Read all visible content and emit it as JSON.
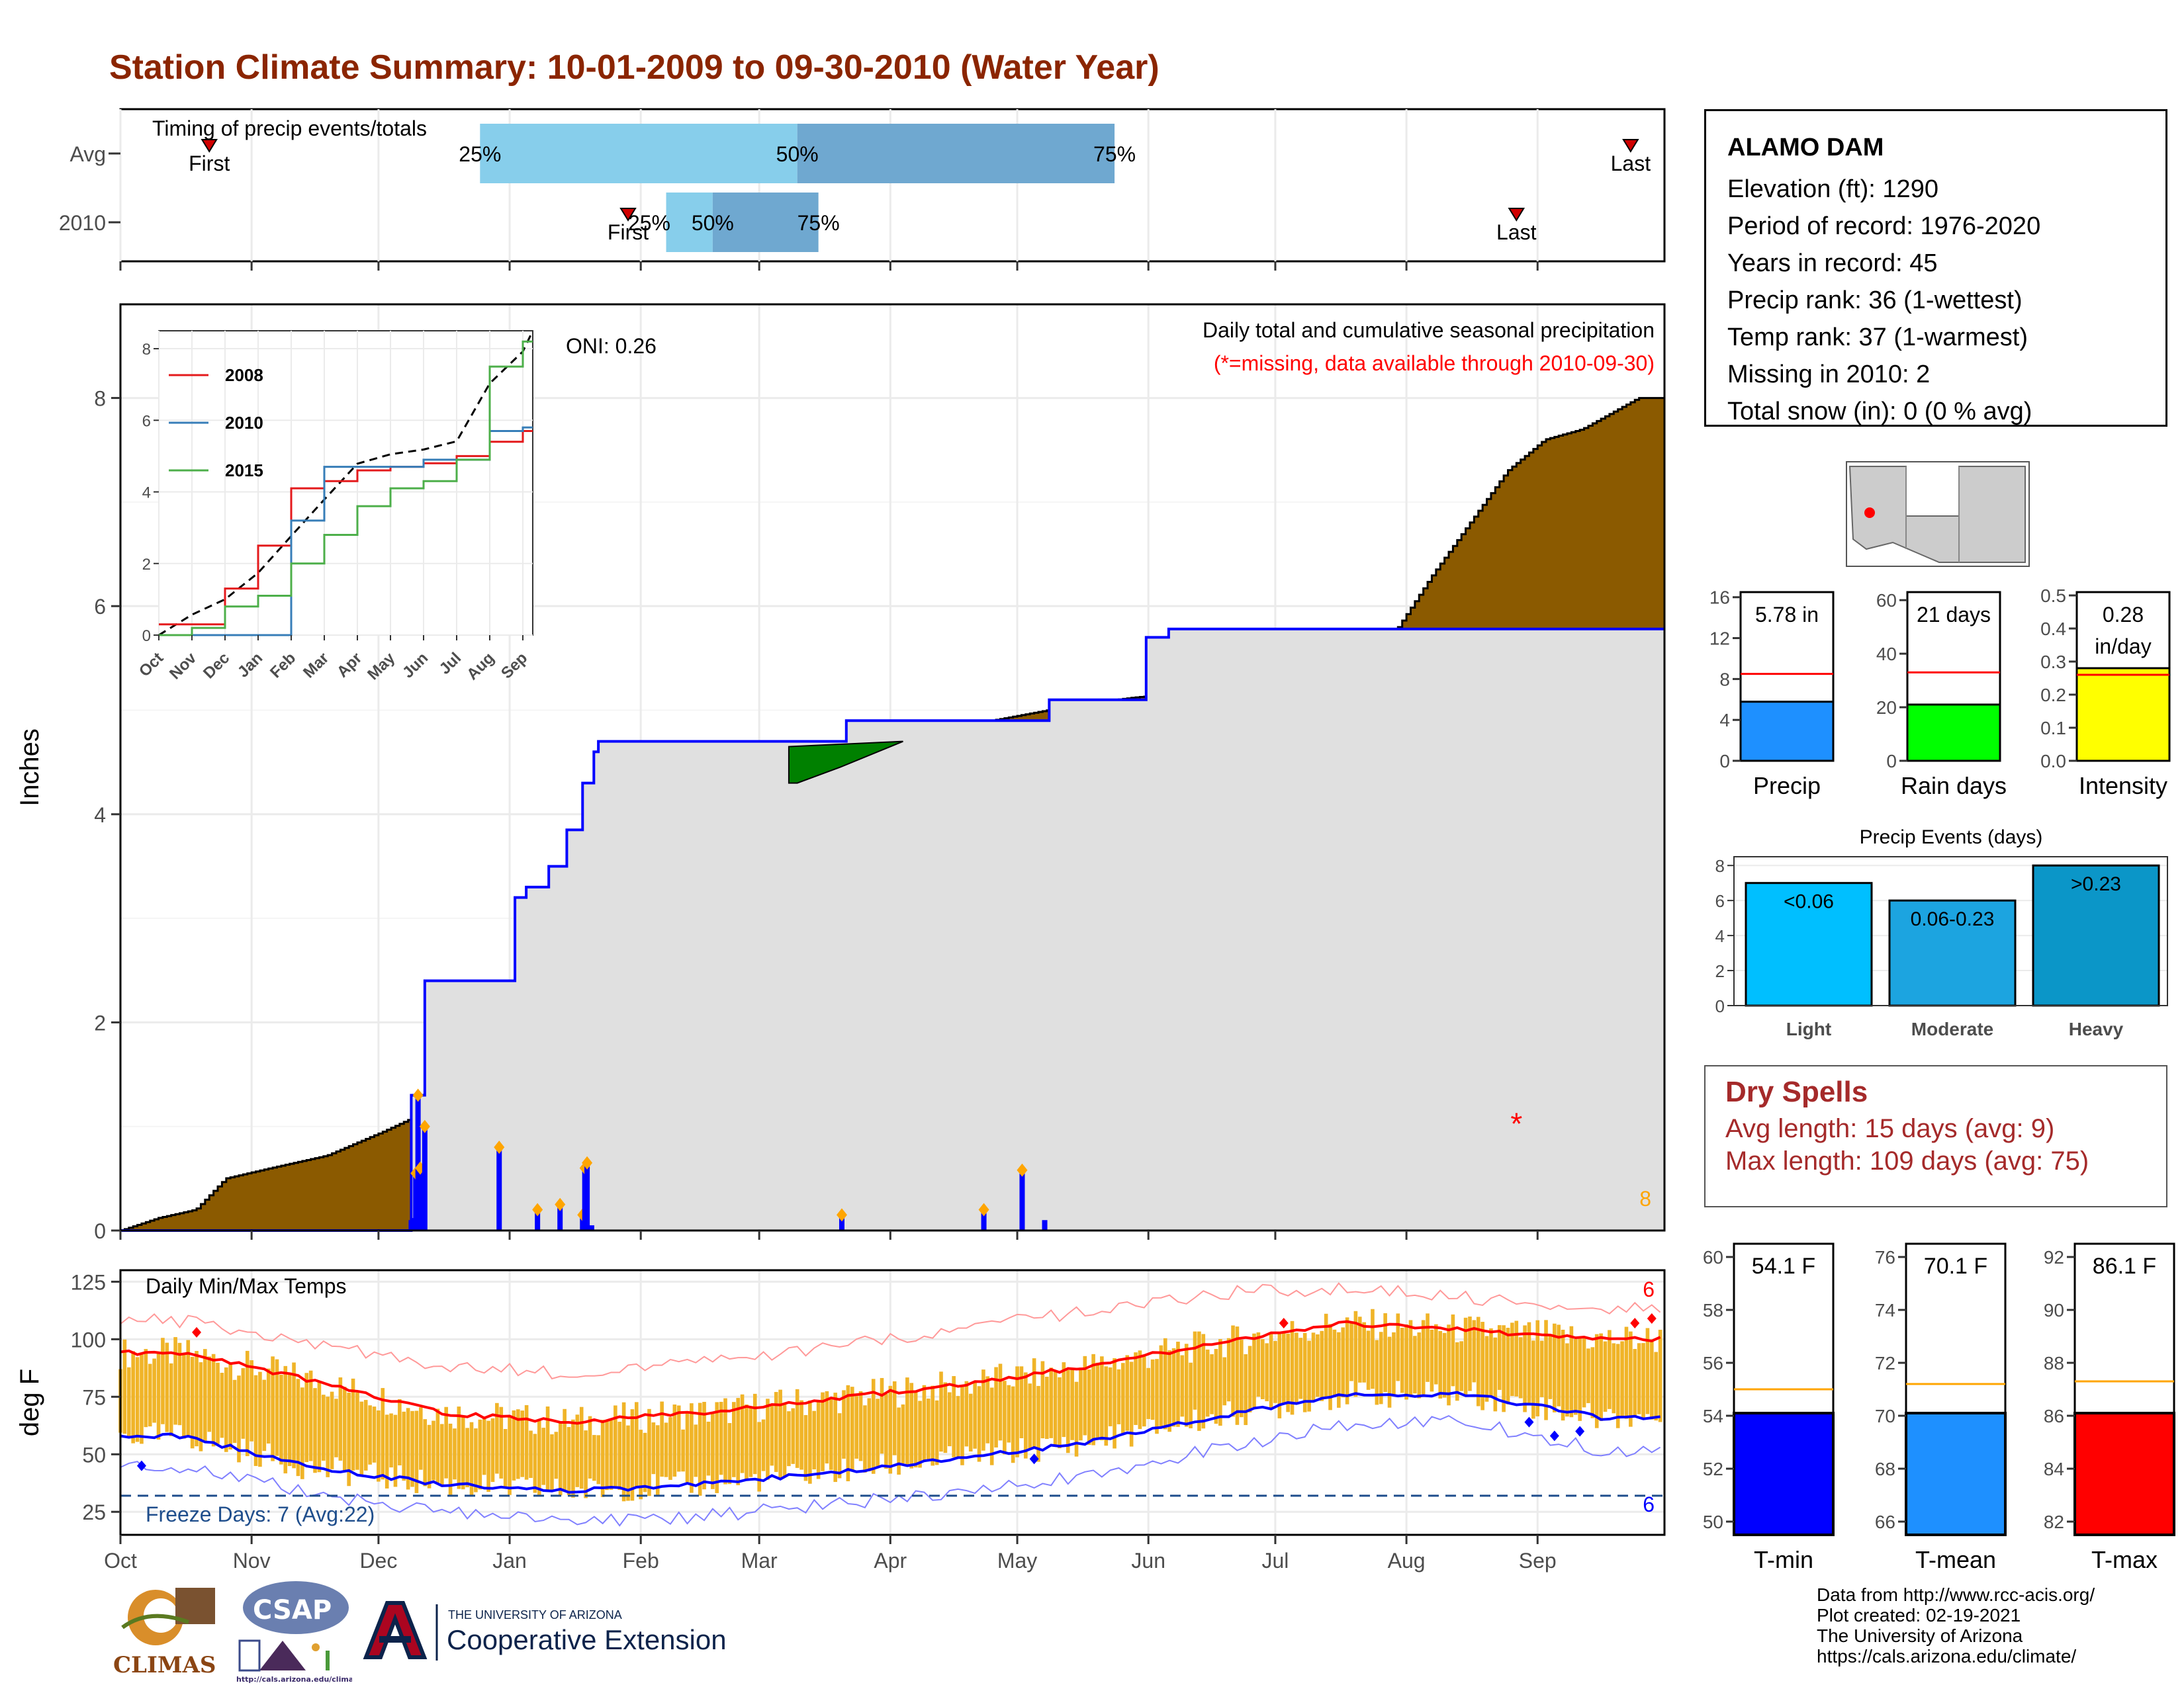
{
  "title": "Station Climate Summary: 10-01-2009 to 09-30-2010 (Water Year)",
  "colors": {
    "title": "#8b2500",
    "accum": "#8b5a00",
    "fill_gray": "#e0e0e0",
    "blue": "#0000ff",
    "green": "#008000",
    "orange": "#ffa500",
    "red": "#ff0000",
    "bar_yellow": "#f0b428"
  },
  "station": {
    "name": "ALAMO DAM",
    "lines": [
      "Elevation (ft): 1290",
      "Period of record: 1976-2020",
      "Years in record: 45",
      "Precip rank: 36 (1-wettest)",
      "Temp rank: 37 (1-warmest)",
      "Missing in 2010: 2",
      "Total snow (in): 0 (0 % avg)"
    ]
  },
  "timing": {
    "title": "Timing of precip events/totals",
    "rows": [
      {
        "label": "Avg",
        "first": "First",
        "last": "Last",
        "p25": "25%",
        "p50": "50%",
        "p75": "75%"
      },
      {
        "label": "2010",
        "first": "First",
        "last": "Last",
        "p25": "25%",
        "p50": "50%",
        "p75": "75%"
      }
    ]
  },
  "precip_panel": {
    "ylabel": "Inches",
    "annotation_title": "Daily total and cumulative seasonal precipitation",
    "annotation_missing": "(*=missing, data available through 2010-09-30)",
    "oni": "ONI: 0.26",
    "count_label": "8",
    "y_ticks": [
      "0",
      "2",
      "4",
      "6",
      "8"
    ]
  },
  "inset": {
    "y_ticks": [
      "0",
      "2",
      "4",
      "6",
      "8"
    ],
    "x_ticks": [
      "Oct",
      "Nov",
      "Dec",
      "Jan",
      "Feb",
      "Mar",
      "Apr",
      "May",
      "Jun",
      "Jul",
      "Aug",
      "Sep"
    ],
    "legend": [
      "2008",
      "2010",
      "2015"
    ]
  },
  "temp_panel": {
    "ylabel": "deg F",
    "title": "Daily Min/Max Temps",
    "freeze": "Freeze Days: 7 (Avg:22)",
    "count_max": "6",
    "count_min": "6",
    "y_ticks": [
      "25",
      "50",
      "75",
      "100",
      "125"
    ]
  },
  "month_ticks": [
    "Oct",
    "Nov",
    "Dec",
    "Jan",
    "Feb",
    "Mar",
    "Apr",
    "May",
    "Jun",
    "Jul",
    "Aug",
    "Sep"
  ],
  "mini_bars": {
    "precip": {
      "label": "Precip",
      "value_text": "5.78 in",
      "y_ticks": [
        "0",
        "4",
        "8",
        "12",
        "16"
      ]
    },
    "rain_days": {
      "label": "Rain days",
      "value_text": "21 days",
      "y_ticks": [
        "0",
        "20",
        "40",
        "60"
      ]
    },
    "intensity": {
      "label": "Intensity",
      "value_text_1": "0.28",
      "value_text_2": "in/day",
      "y_ticks": [
        "0.0",
        "0.1",
        "0.2",
        "0.3",
        "0.4",
        "0.5"
      ]
    }
  },
  "events": {
    "title": "Precip Events (days)",
    "y_ticks": [
      "0",
      "2",
      "4",
      "6",
      "8"
    ],
    "bars": [
      {
        "category": "Light",
        "label": "<0.06",
        "value": 7
      },
      {
        "category": "Moderate",
        "label": "0.06-0.23",
        "value": 6
      },
      {
        "category": "Heavy",
        "label": ">0.23",
        "value": 8
      }
    ]
  },
  "dry_spells": {
    "title": "Dry Spells",
    "avg": "Avg length: 15 days (avg: 9)",
    "max": "Max length: 109 days (avg: 75)"
  },
  "temp_bars": {
    "tmin": {
      "label": "T-min",
      "value_text": "54.1 F",
      "value": 54.1,
      "avg": 55.0,
      "y_ticks": [
        "50",
        "52",
        "54",
        "56",
        "58",
        "60"
      ]
    },
    "tmean": {
      "label": "T-mean",
      "value_text": "70.1 F",
      "value": 70.1,
      "avg": 71.2,
      "y_ticks": [
        "66",
        "68",
        "70",
        "72",
        "74",
        "76"
      ]
    },
    "tmax": {
      "label": "T-max",
      "value_text": "86.1 F",
      "value": 86.1,
      "avg": 87.3,
      "y_ticks": [
        "82",
        "84",
        "86",
        "88",
        "90",
        "92"
      ]
    }
  },
  "credits": [
    "Data from http://www.rcc-acis.org/",
    "Plot created: 02-19-2021",
    "The University of Arizona",
    "https://cals.arizona.edu/climate/"
  ],
  "logos": {
    "climas": "CLIMAS",
    "csap": "CSAP",
    "csap_url": "http://cals.arizona.edu/climate",
    "ua_top": "THE UNIVERSITY OF ARIZONA",
    "ua_bottom": "Cooperative Extension"
  },
  "chart_data": [
    {
      "type": "area",
      "name": "cumulative precipitation",
      "ylabel": "Inches",
      "x_range": [
        "2009-10-01",
        "2010-09-30"
      ],
      "ylim": [
        0,
        8.8
      ],
      "cumulative_avg": [
        [
          0,
          0
        ],
        [
          10,
          0.12
        ],
        [
          20,
          0.2
        ],
        [
          28,
          0.5
        ],
        [
          40,
          0.6
        ],
        [
          55,
          0.72
        ],
        [
          70,
          0.95
        ],
        [
          85,
          1.2
        ],
        [
          100,
          1.55
        ],
        [
          115,
          1.85
        ],
        [
          130,
          2.25
        ],
        [
          140,
          2.65
        ],
        [
          150,
          2.85
        ],
        [
          160,
          3.05
        ],
        [
          170,
          3.3
        ],
        [
          180,
          3.7
        ],
        [
          188,
          4.0
        ],
        [
          195,
          4.3
        ],
        [
          205,
          4.55
        ],
        [
          215,
          4.75
        ],
        [
          225,
          4.85
        ],
        [
          240,
          4.95
        ],
        [
          255,
          5.05
        ],
        [
          270,
          5.12
        ],
        [
          285,
          5.17
        ],
        [
          300,
          5.2
        ],
        [
          310,
          5.2
        ],
        [
          320,
          5.25
        ],
        [
          330,
          5.45
        ],
        [
          340,
          5.75
        ],
        [
          350,
          6.3
        ],
        [
          360,
          6.8
        ],
        [
          370,
          7.3
        ],
        [
          380,
          7.6
        ],
        [
          390,
          7.7
        ],
        [
          405,
          8.0
        ],
        [
          412,
          8.0
        ]
      ],
      "cumulative_2010": [
        [
          0,
          0
        ],
        [
          117,
          0
        ],
        [
          128,
          0
        ],
        [
          129,
          1.3
        ],
        [
          135,
          2.4
        ],
        [
          168,
          2.4
        ],
        [
          175,
          3.2
        ],
        [
          180,
          3.3
        ],
        [
          190,
          3.5
        ],
        [
          198,
          3.85
        ],
        [
          205,
          4.3
        ],
        [
          210,
          4.6
        ],
        [
          212,
          4.7
        ],
        [
          240,
          4.7
        ],
        [
          320,
          4.7
        ],
        [
          322,
          4.9
        ],
        [
          410,
          4.9
        ],
        [
          412,
          5.1
        ],
        [
          440,
          5.1
        ],
        [
          455,
          5.7
        ],
        [
          465,
          5.78
        ],
        [
          500,
          5.78
        ]
      ],
      "daily_2010": [
        [
          129,
          0.1
        ],
        [
          130,
          0.12
        ],
        [
          131,
          0.55
        ],
        [
          132,
          1.3
        ],
        [
          133,
          0.6
        ],
        [
          135,
          1.0
        ],
        [
          168,
          0.8
        ],
        [
          185,
          0.2
        ],
        [
          195,
          0.25
        ],
        [
          205,
          0.15
        ],
        [
          206,
          0.6
        ],
        [
          207,
          0.65
        ],
        [
          209,
          0.05
        ],
        [
          320,
          0.15
        ],
        [
          383,
          0.2
        ],
        [
          400,
          0.58
        ],
        [
          410,
          0.1
        ]
      ]
    },
    {
      "type": "line",
      "name": "inset cumulative precip",
      "x": [
        "Oct",
        "Nov",
        "Dec",
        "Jan",
        "Feb",
        "Mar",
        "Apr",
        "May",
        "Jun",
        "Jul",
        "Aug",
        "Sep"
      ],
      "series": [
        {
          "name": "2008",
          "values": [
            0.3,
            0.3,
            1.3,
            2.5,
            4.1,
            4.3,
            4.6,
            4.7,
            4.8,
            5.0,
            5.4,
            5.7
          ]
        },
        {
          "name": "2010",
          "values": [
            0.0,
            0.0,
            0.0,
            0.0,
            3.2,
            4.7,
            4.7,
            4.7,
            4.9,
            4.9,
            5.7,
            5.8
          ]
        },
        {
          "name": "2015",
          "values": [
            0.0,
            0.2,
            0.8,
            1.1,
            2.0,
            2.8,
            3.6,
            4.1,
            4.3,
            4.9,
            7.5,
            8.2
          ]
        }
      ],
      "ylim": [
        0,
        8.5
      ]
    },
    {
      "type": "line",
      "name": "Daily Min/Max Temps",
      "ylabel": "deg F",
      "ylim": [
        15,
        130
      ],
      "months": [
        "Oct",
        "Nov",
        "Dec",
        "Jan",
        "Feb",
        "Mar",
        "Apr",
        "May",
        "Jun",
        "Jul",
        "Aug",
        "Sep"
      ],
      "avg_max": [
        94,
        82,
        68,
        64,
        68,
        74,
        80,
        88,
        98,
        107,
        104,
        100
      ],
      "avg_min": [
        58,
        44,
        37,
        34,
        37,
        42,
        48,
        55,
        66,
        76,
        76,
        66
      ],
      "record_max": [
        108,
        98,
        88,
        85,
        90,
        96,
        104,
        112,
        120,
        122,
        118,
        114
      ],
      "record_min": [
        45,
        33,
        25,
        21,
        23,
        28,
        34,
        41,
        52,
        63,
        64,
        52
      ],
      "freeze_line": 32
    },
    {
      "type": "bar",
      "categories": [
        "Light",
        "Moderate",
        "Heavy"
      ],
      "values": [
        7,
        6,
        8
      ],
      "ylim": [
        0,
        8.5
      ]
    }
  ]
}
